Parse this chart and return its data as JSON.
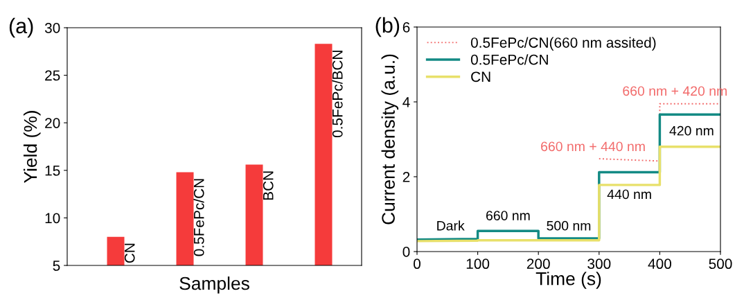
{
  "chart_data": [
    {
      "type": "bar",
      "title": "(a)",
      "xlabel": "Samples",
      "ylabel": "Yield (%)",
      "categories": [
        "CN",
        "0.5FePc/CN",
        "BCN",
        "0.5FePc/BCN"
      ],
      "values": [
        8.0,
        14.8,
        15.6,
        28.3
      ],
      "color": "#f53b3b",
      "ylim": [
        5,
        30
      ],
      "yticks": [
        5,
        10,
        15,
        20,
        25,
        30
      ],
      "grid": false
    },
    {
      "type": "line",
      "title": "(b)",
      "xlabel": "Time (s)",
      "ylabel": "Current density (a.u.)",
      "series": [
        {
          "name": "0.5FePc/CN(660 nm assited)",
          "color": "#f26b6b",
          "line_style": "dotted",
          "x": [
            300,
            400,
            400,
            500
          ],
          "values": [
            2.48,
            2.42,
            3.95,
            3.95
          ]
        },
        {
          "name": "0.5FePc/CN",
          "color": "#138a84",
          "line_style": "solid",
          "x": [
            0,
            100,
            100,
            200,
            200,
            300,
            300,
            400,
            400,
            500
          ],
          "values": [
            0.32,
            0.34,
            0.55,
            0.55,
            0.35,
            0.35,
            2.12,
            2.12,
            3.66,
            3.66
          ]
        },
        {
          "name": "CN",
          "color": "#e8e06a",
          "line_style": "solid",
          "x": [
            0,
            100,
            100,
            200,
            200,
            300,
            300,
            400,
            400,
            500
          ],
          "values": [
            0.28,
            0.29,
            0.3,
            0.3,
            0.3,
            0.3,
            1.78,
            1.78,
            2.8,
            2.8
          ]
        }
      ],
      "xlim": [
        0,
        500
      ],
      "xticks": [
        0,
        100,
        200,
        300,
        400,
        500
      ],
      "ylim": [
        0,
        6
      ],
      "yticks": [
        0,
        2,
        4,
        6
      ],
      "legend": "top left",
      "grid": false,
      "annotations": [
        "Dark",
        "660 nm",
        "500 nm",
        "440 nm",
        "660 nm + 440 nm",
        "420 nm",
        "660 nm + 420 nm"
      ]
    }
  ]
}
